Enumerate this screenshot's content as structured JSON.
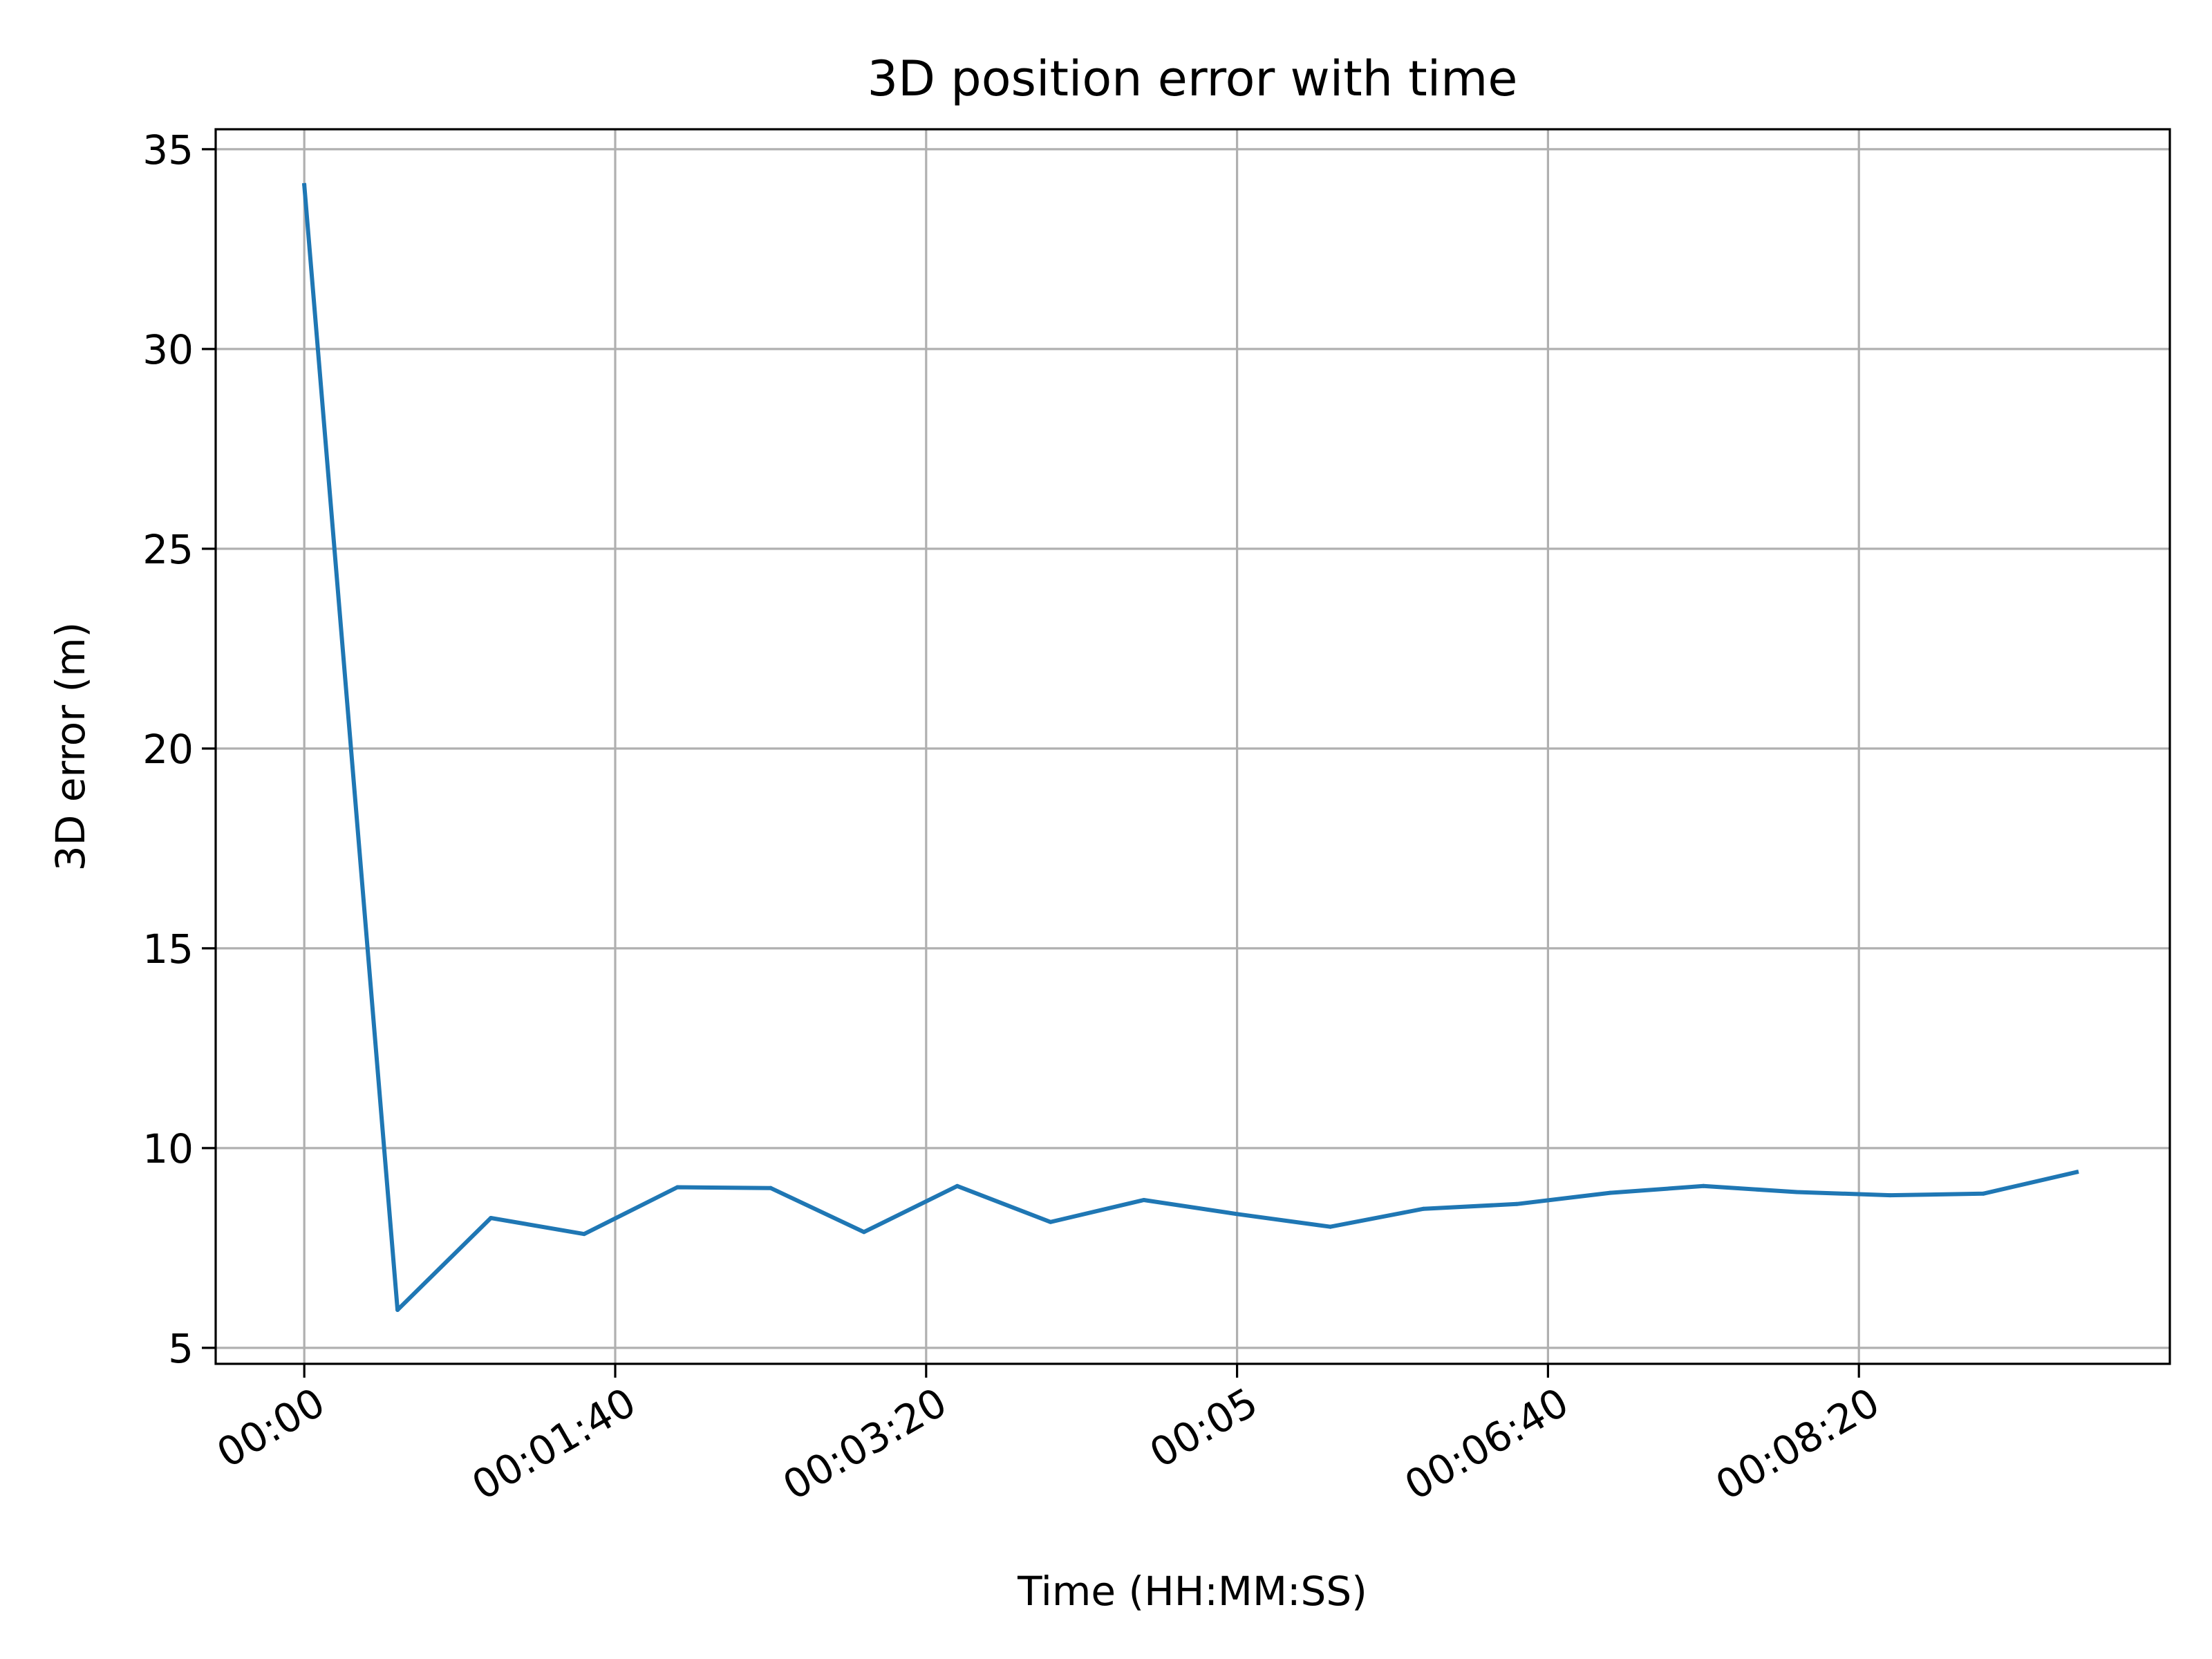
{
  "chart_data": {
    "type": "line",
    "title": "3D position error with time",
    "xlabel": "Time (HH:MM:SS)",
    "ylabel": "3D error (m)",
    "grid": true,
    "x_unit": "seconds",
    "xlim": [
      -28.5,
      600
    ],
    "ylim": [
      4.6,
      35.5
    ],
    "x_ticks": [
      {
        "value": 0,
        "label": "00:00"
      },
      {
        "value": 100,
        "label": "00:01:40"
      },
      {
        "value": 200,
        "label": "00:03:20"
      },
      {
        "value": 300,
        "label": "00:05"
      },
      {
        "value": 400,
        "label": "00:06:40"
      },
      {
        "value": 500,
        "label": "00:08:20"
      }
    ],
    "y_ticks": [
      {
        "value": 5,
        "label": "5"
      },
      {
        "value": 10,
        "label": "10"
      },
      {
        "value": 15,
        "label": "15"
      },
      {
        "value": 20,
        "label": "20"
      },
      {
        "value": 25,
        "label": "25"
      },
      {
        "value": 30,
        "label": "30"
      },
      {
        "value": 35,
        "label": "35"
      }
    ],
    "series": [
      {
        "color": "#1f77b4",
        "x": [
          0,
          30,
          60,
          90,
          120,
          150,
          180,
          210,
          240,
          270,
          300,
          330,
          360,
          390,
          420,
          450,
          480,
          510,
          540,
          570
        ],
        "y": [
          34.1,
          5.95,
          8.25,
          7.85,
          9.02,
          9.0,
          7.9,
          9.05,
          8.15,
          8.7,
          8.35,
          8.03,
          8.48,
          8.6,
          8.88,
          9.05,
          8.9,
          8.82,
          8.86,
          9.4
        ]
      }
    ]
  }
}
